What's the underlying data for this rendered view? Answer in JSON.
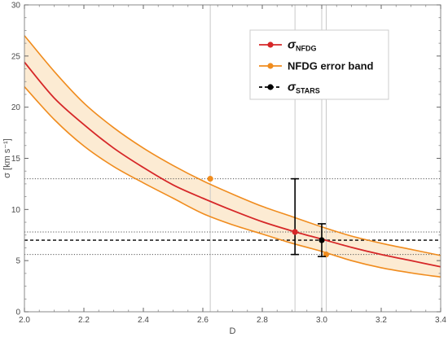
{
  "chart_data": {
    "type": "line",
    "title": "",
    "xlabel": "D",
    "ylabel": "σ [km s⁻¹]",
    "xlim": [
      2.0,
      3.4
    ],
    "ylim": [
      0,
      30
    ],
    "x_ticks": [
      "2.0",
      "2.2",
      "2.4",
      "2.6",
      "2.8",
      "3.0",
      "3.2",
      "3.4"
    ],
    "y_ticks": [
      "0",
      "5",
      "10",
      "15",
      "20",
      "25",
      "30"
    ],
    "grid": false,
    "legend_position": "top-right",
    "curves": {
      "x": [
        2.0,
        2.1,
        2.2,
        2.3,
        2.4,
        2.5,
        2.6,
        2.7,
        2.8,
        2.9,
        3.0,
        3.1,
        3.2,
        3.3,
        3.4
      ],
      "central": [
        24.4,
        20.9,
        18.3,
        16.0,
        14.1,
        12.4,
        11.1,
        9.9,
        8.8,
        7.9,
        7.1,
        6.3,
        5.6,
        5.0,
        4.4
      ],
      "upper": [
        27.0,
        23.5,
        20.4,
        18.0,
        16.0,
        14.3,
        12.8,
        11.5,
        10.3,
        9.3,
        8.3,
        7.4,
        6.7,
        6.1,
        5.5
      ],
      "lower": [
        22.0,
        18.8,
        16.2,
        14.2,
        12.6,
        11.1,
        9.6,
        8.5,
        7.6,
        6.7,
        5.9,
        5.0,
        4.3,
        3.8,
        3.4
      ]
    },
    "series": [
      {
        "name": "σNFDG",
        "label_main": "σ",
        "label_sub": "NFDG",
        "color": "#d62728",
        "marker": "circle",
        "line": "solid"
      },
      {
        "name": "NFDG error band",
        "label_main": "NFDG error band",
        "label_sub": "",
        "color": "#f08c1e",
        "marker": "circle",
        "line": "solid"
      },
      {
        "name": "σSTARS",
        "label_main": "σ",
        "label_sub": "STARS",
        "color": "#000000",
        "marker": "circle",
        "line": "dashed"
      }
    ],
    "vertical_lines": [
      2.625,
      2.91,
      3.0,
      3.015
    ],
    "horizontal_lines": [
      {
        "y": 13.0,
        "style": "dotted"
      },
      {
        "y": 7.8,
        "style": "dotted"
      },
      {
        "y": 7.0,
        "style": "dashed"
      },
      {
        "y": 5.6,
        "style": "dotted"
      }
    ],
    "points": [
      {
        "x": 2.625,
        "y": 13.0,
        "color": "#f08c1e",
        "series": "NFDG error band"
      },
      {
        "x": 3.015,
        "y": 5.6,
        "color": "#f08c1e",
        "series": "NFDG error band"
      },
      {
        "x": 2.91,
        "y": 7.8,
        "color": "#d62728",
        "series": "σNFDG",
        "error": [
          5.6,
          13.0
        ]
      },
      {
        "x": 3.0,
        "y": 7.0,
        "color": "#000000",
        "series": "σSTARS",
        "error": [
          5.4,
          8.6
        ]
      }
    ],
    "colors": {
      "band_fill": "#fcebd3",
      "band_edge": "#f08c1e",
      "central": "#d62728",
      "reference": "#000000",
      "vline": "#c8c8c8",
      "frame": "#888888"
    }
  }
}
